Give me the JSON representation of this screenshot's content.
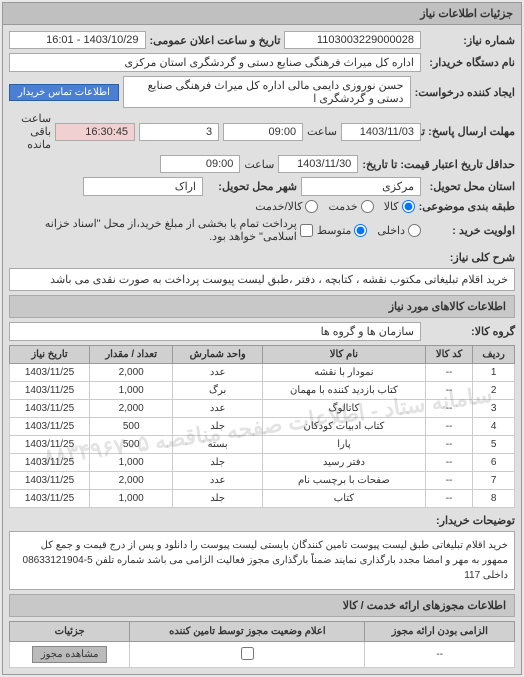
{
  "panel_title": "جزئیات اطلاعات نیاز",
  "need_number_label": "شماره نیاز:",
  "need_number": "1103003229000028",
  "announce_label": "تاریخ و ساعت اعلان عمومی:",
  "announce_value": "1403/10/29 - 16:01",
  "buyer_name_label": "نام دستگاه خریدار:",
  "buyer_name": "اداره کل میراث فرهنگی  صنایع دستی و گردشگری استان مرکزی",
  "requester_label": "ایجاد کننده درخواست:",
  "requester": "حسن نوروزی دایمی مالی  اداره کل میراث فرهنگی  صنایع دستی و گردشگری ا",
  "contact_btn": "اطلاعات تماس خریدار",
  "deadline_send_label": "مهلت ارسال پاسخ: تا تاریخ:",
  "deadline_send_date": "1403/11/03",
  "time_label": "ساعت",
  "deadline_send_time": "09:00",
  "remain_label": "ساعت باقی مانده",
  "remain_days": "3",
  "remain_time": "16:30:45",
  "validity_label": "حداقل تاریخ اعتبار قیمت: تا تاریخ:",
  "validity_date": "1403/11/30",
  "validity_time": "09:00",
  "delivery_province_label": "استان محل تحویل:",
  "delivery_province": "مرکزی",
  "delivery_city_label": "شهر محل تحویل:",
  "delivery_city": "اراک",
  "unit_label": "طبقه بندی موضوعی:",
  "radio_goods": "کالا",
  "radio_service": "خدمت",
  "radio_goods_service": "کالا/خدمت",
  "priority_label": "اولویت خرید :",
  "radio_domestic": "داخلی",
  "radio_medium": "متوسط",
  "payment_note": "پرداخت تمام یا بخشی از مبلغ خرید،از محل \"اسناد خزانه اسلامی\" خواهد بود.",
  "need_title_label": "شرح کلی نیاز:",
  "need_title": "خرید اقلام تبلیغاتی مکتوب  نقشه ، کتابچه ، دفتر ،طبق لیست پیوست پرداخت به صورت نقدی می باشد",
  "goods_section_title": "اطلاعات کالاهای مورد نیاز",
  "group_label": "گروه کالا:",
  "group_value": "سازمان ها و گروه ها",
  "table": {
    "headers": [
      "ردیف",
      "کد کالا",
      "نام کالا",
      "واحد شمارش",
      "تعداد / مقدار",
      "تاریخ نیاز"
    ],
    "rows": [
      [
        "1",
        "--",
        "نمودار با نقشه",
        "عدد",
        "2,000",
        "1403/11/25"
      ],
      [
        "2",
        "--",
        "کتاب بازدید کننده با مهمان",
        "برگ",
        "1,000",
        "1403/11/25"
      ],
      [
        "3",
        "--",
        "کاتالوگ",
        "عدد",
        "2,000",
        "1403/11/25"
      ],
      [
        "4",
        "--",
        "کتاب ادبیات کودکان",
        "جلد",
        "500",
        "1403/11/25"
      ],
      [
        "5",
        "--",
        "پارا",
        "بسته",
        "500",
        "1403/11/25"
      ],
      [
        "6",
        "--",
        "دفتر رسید",
        "جلد",
        "1,000",
        "1403/11/25"
      ],
      [
        "7",
        "--",
        "صفحات با برچسب نام",
        "عدد",
        "2,000",
        "1403/11/25"
      ],
      [
        "8",
        "--",
        "کتاب",
        "جلد",
        "1,000",
        "1403/11/25"
      ]
    ]
  },
  "watermark_text": "سامانه ستاد - اطلاعات صفحه مناقصه ۰۸۸۳۴۹۶۷۰۵",
  "desc_label": "توضیحات خریدار:",
  "desc_text": "خرید اقلام تبلیغاتی طبق لیست پیوست تامین کنندگان بایستی لیست پیوست را دانلود و پس از درج قیمت و جمع کل ممهور به مهر و امضا مجدد بارگذاری نمایند ضمناً بارگذاری مجوز فعالیت الزامی می باشد شماره تلفن 5-08633121904 داخلی 117",
  "license_section_title": "اطلاعات مجوزهای ارائه خدمت / کالا",
  "bottom_headers": [
    "الزامی بودن ارائه مجوز",
    "اعلام وضعیت مجوز توسط تامین کننده",
    "جزئیات"
  ],
  "bottom_row_dash": "--",
  "view_license_btn": "مشاهده مجوز"
}
